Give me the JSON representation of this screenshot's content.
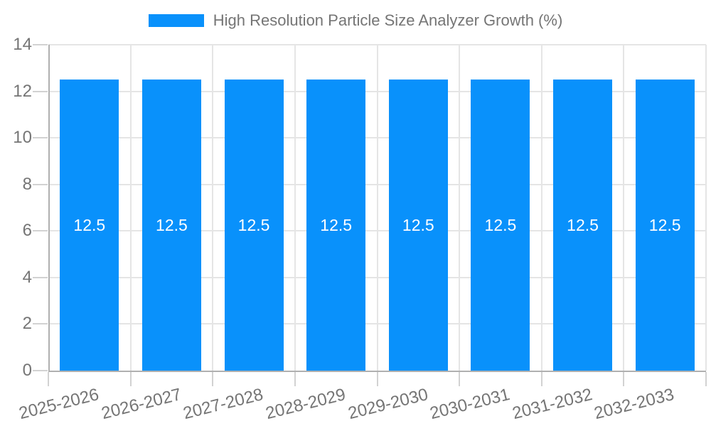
{
  "chart_data": {
    "type": "bar",
    "title": "High Resolution Particle Size Analyzer Growth (%)",
    "legend": {
      "label": "High Resolution Particle Size Analyzer Growth (%)",
      "position": "top-center"
    },
    "categories": [
      "2025-2026",
      "2026-2027",
      "2027-2028",
      "2028-2029",
      "2029-2030",
      "2030-2031",
      "2031-2032",
      "2032-2033"
    ],
    "series": [
      {
        "name": "High Resolution Particle Size Analyzer Growth (%)",
        "values": [
          12.5,
          12.5,
          12.5,
          12.5,
          12.5,
          12.5,
          12.5,
          12.5
        ]
      }
    ],
    "bar_value_labels": [
      "12.5",
      "12.5",
      "12.5",
      "12.5",
      "12.5",
      "12.5",
      "12.5",
      "12.5"
    ],
    "xlabel": "",
    "ylabel": "",
    "ylim": [
      0,
      14
    ],
    "yticks": [
      0,
      2,
      4,
      6,
      8,
      10,
      12,
      14
    ],
    "grid": true,
    "x_tick_rotation_deg": -14,
    "colors": {
      "bar": "#0991fb",
      "bar_value_label": "#ffffff",
      "axis_text": "#757575",
      "grid_line": "#e5e5e5",
      "axis_line": "#b0b0b0",
      "tick_mark": "#d2d2d2",
      "background": "#ffffff"
    }
  }
}
